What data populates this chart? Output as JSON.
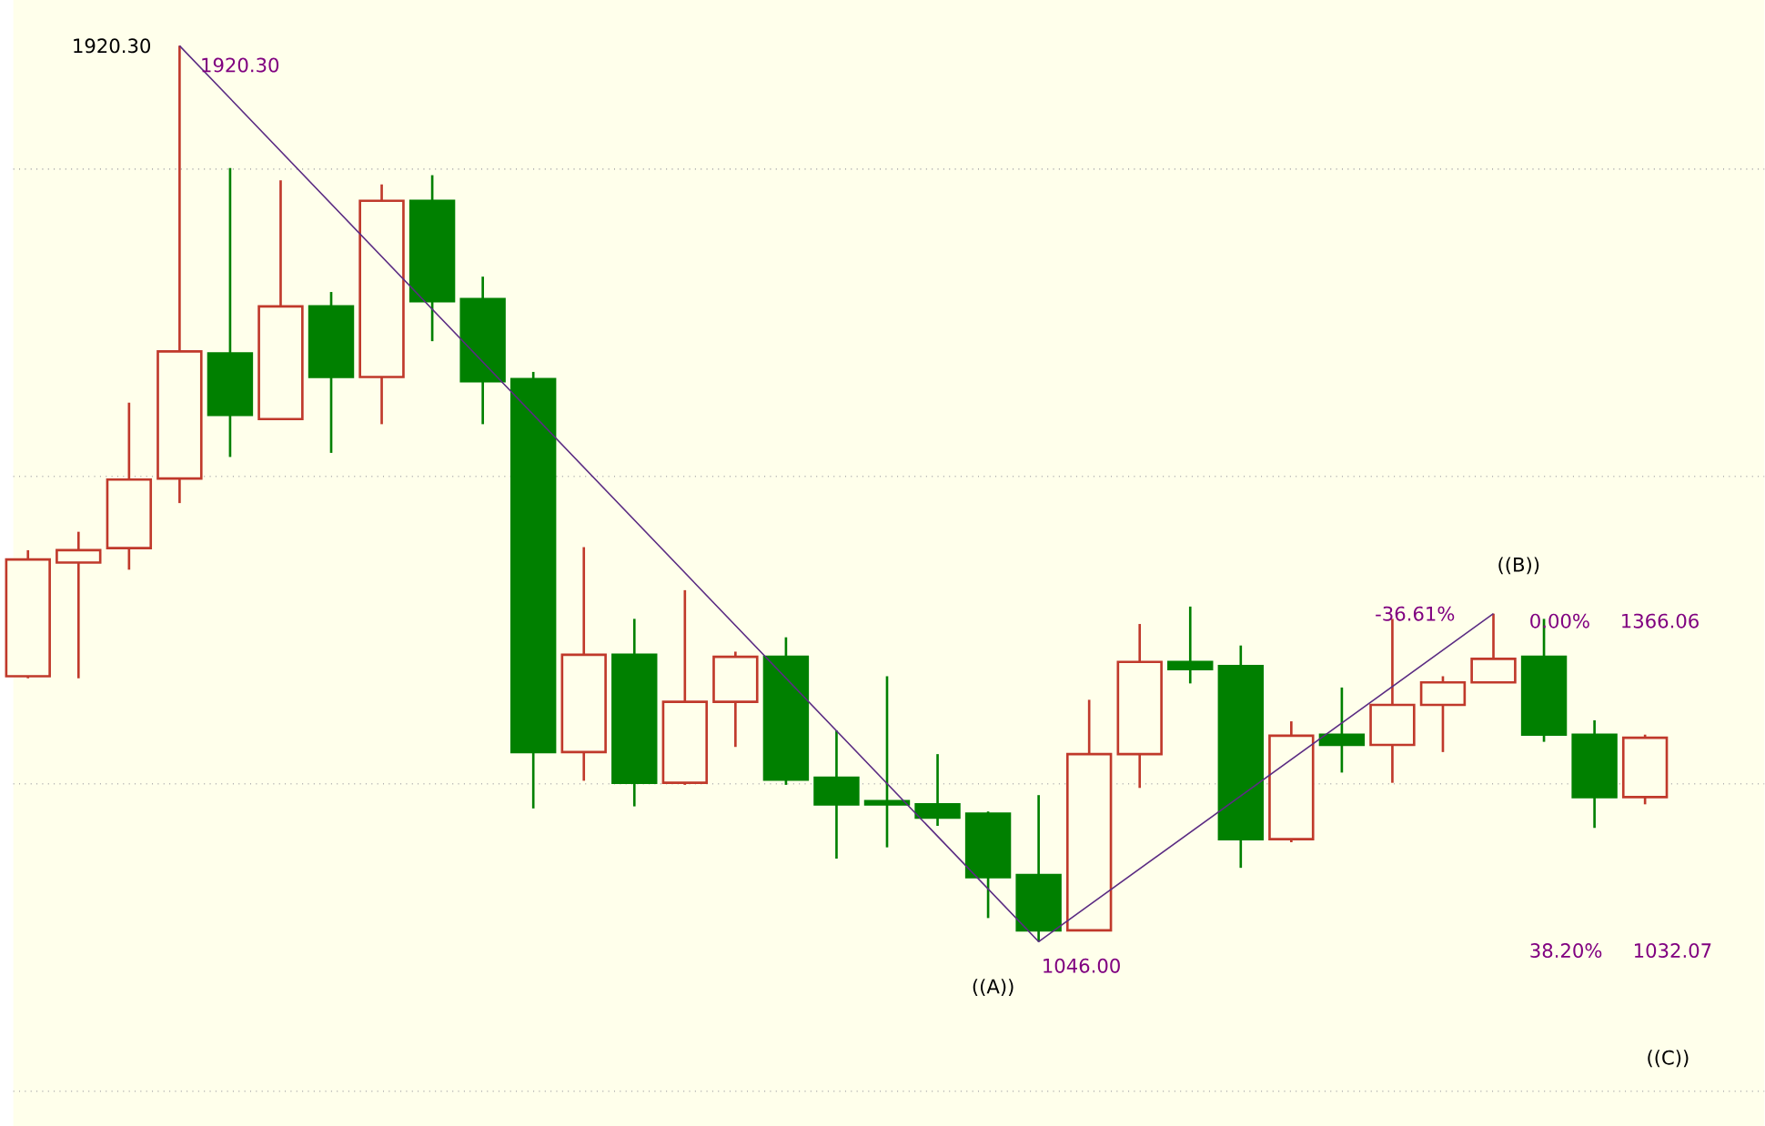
{
  "chart_data": {
    "type": "candlestick",
    "categories": [
      null,
      null,
      null,
      null,
      null,
      null,
      null,
      null,
      null,
      null,
      null,
      null,
      null,
      null,
      null,
      null,
      null,
      null,
      null,
      null,
      null,
      null,
      null,
      null,
      null,
      null,
      null,
      null,
      null,
      null,
      null,
      null,
      null
    ],
    "ohlc": [
      [
        1305,
        1428,
        1303,
        1419
      ],
      [
        1416,
        1446,
        1303,
        1428
      ],
      [
        1430,
        1572,
        1409,
        1497
      ],
      [
        1498,
        1920.3,
        1474,
        1622
      ],
      [
        1620,
        1801,
        1519,
        1560
      ],
      [
        1556,
        1789,
        1556,
        1666
      ],
      [
        1666,
        1680,
        1523,
        1597
      ],
      [
        1597,
        1785,
        1551,
        1769
      ],
      [
        1769,
        1794,
        1632,
        1671
      ],
      [
        1673,
        1695,
        1551,
        1593
      ],
      [
        1595,
        1602,
        1176,
        1231
      ],
      [
        1231,
        1431,
        1203,
        1326
      ],
      [
        1326,
        1361,
        1178,
        1201
      ],
      [
        1201,
        1389,
        1199,
        1280
      ],
      [
        1280,
        1329,
        1236,
        1324
      ],
      [
        1324,
        1343,
        1199,
        1204
      ],
      [
        1206,
        1252,
        1127,
        1180
      ],
      [
        1183,
        1305,
        1138,
        1180
      ],
      [
        1180,
        1229,
        1159,
        1167
      ],
      [
        1171,
        1173,
        1069,
        1109
      ],
      [
        1111,
        1189,
        1046.0,
        1057
      ],
      [
        1057,
        1282,
        1057,
        1229
      ],
      [
        1229,
        1356,
        1196,
        1319
      ],
      [
        1319,
        1373,
        1298,
        1312
      ],
      [
        1315,
        1335,
        1118,
        1146
      ],
      [
        1146,
        1261,
        1143,
        1247
      ],
      [
        1248,
        1294,
        1211,
        1238
      ],
      [
        1238,
        1361,
        1201,
        1277
      ],
      [
        1277,
        1305,
        1231,
        1299
      ],
      [
        1299,
        1366.06,
        1299,
        1322
      ],
      [
        1324,
        1361,
        1241,
        1248
      ],
      [
        1248,
        1262,
        1157,
        1187
      ],
      [
        1187,
        1248,
        1180,
        1245
      ]
    ],
    "colors": [
      "#c0392b",
      "#c0392b",
      "#c0392b",
      "#c0392b",
      "#008000",
      "#c0392b",
      "#008000",
      "#c0392b",
      "#008000",
      "#008000",
      "#008000",
      "#c0392b",
      "#008000",
      "#c0392b",
      "#c0392b",
      "#008000",
      "#008000",
      "#008000",
      "#008000",
      "#008000",
      "#008000",
      "#c0392b",
      "#c0392b",
      "#008000",
      "#008000",
      "#c0392b",
      "#008000",
      "#c0392b",
      "#c0392b",
      "#c0392b",
      "#008000",
      "#008000",
      "#c0392b"
    ],
    "series": [
      {
        "type": "line",
        "color": "#5b2c83",
        "values": [
          null,
          null,
          null,
          1920.3,
          null,
          null,
          null,
          null,
          null,
          null,
          null,
          null,
          null,
          null,
          null,
          null,
          null,
          null,
          null,
          null,
          1046.0,
          null,
          null,
          null,
          null,
          null,
          null,
          null,
          null,
          1366.06,
          null,
          null,
          null
        ]
      }
    ],
    "ylim": [
      866,
      1965
    ],
    "yticks": [
      {
        "value": 900,
        "label": null
      },
      {
        "value": 1200,
        "label": null
      },
      {
        "value": 1500,
        "label": null
      },
      {
        "value": 1800,
        "label": null
      }
    ],
    "grid": "y",
    "annotations": [
      "1920.30",
      "1920.30",
      "1046.00",
      "((A))",
      "((B))",
      "-36.61%",
      "0.00%",
      "1366.06",
      "38.20%",
      "1032.07",
      "((C))"
    ]
  }
}
